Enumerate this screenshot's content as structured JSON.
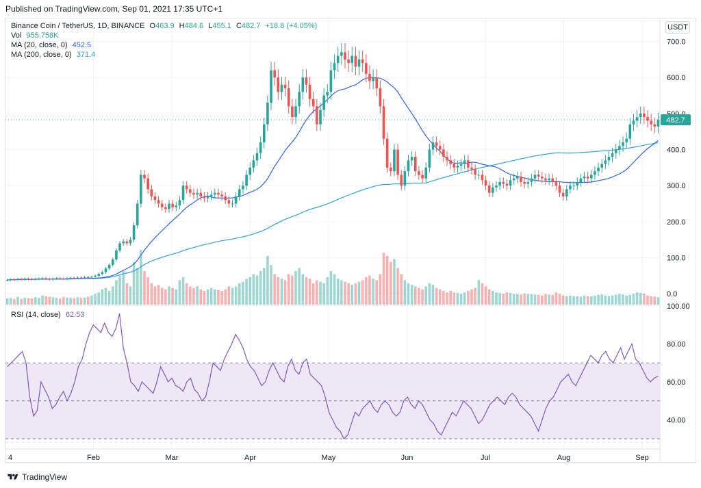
{
  "header": {
    "published": "Published on TradingView.com, Sep 01, 2021 17:35 UTC+1"
  },
  "legend": {
    "symbol": "Binance Coin / TetherUS, 1D, BINANCE",
    "ohlc": {
      "o_label": "O",
      "o": "463.9",
      "h_label": "H",
      "h": "484.6",
      "l_label": "L",
      "l": "455.1",
      "c_label": "C",
      "c": "482.7",
      "change": "+18.8 (+4.05%)"
    },
    "vol_label": "Vol",
    "vol": "955.758K",
    "ma20_label": "MA (20, close, 0)",
    "ma20": "452.5",
    "ma200_label": "MA (200, close, 0)",
    "ma200": "371.4",
    "rsi_label": "RSI (14, close)",
    "rsi": "62.53"
  },
  "currency_button": "USDT",
  "price_tag": "482.7",
  "footer": {
    "brand": "TradingView"
  },
  "colors": {
    "up": "#26a69a",
    "down": "#ef5350",
    "ma20": "#2962ff",
    "ma200": "#26a5e0",
    "rsi": "#7e57c2",
    "rsi_band": "#ede7f6",
    "grid": "#f0f3fa"
  },
  "chart_data": [
    {
      "type": "candlestick",
      "title": "",
      "price_axis": {
        "min": -30,
        "max": 720,
        "ticks": [
          "0.0",
          "100.0",
          "200.0",
          "300.0",
          "400.0",
          "500.0",
          "600.0",
          "700.0"
        ]
      },
      "time_axis": {
        "labels": [
          "4",
          "Feb",
          "Mar",
          "Apr",
          "May",
          "Jun",
          "Jul",
          "Aug",
          "Sep"
        ]
      },
      "last_price": 482.7,
      "close_series": [
        38,
        40,
        39,
        41,
        40,
        42,
        41,
        40,
        41,
        42,
        43,
        41,
        40,
        42,
        43,
        42,
        41,
        43,
        44,
        43,
        45,
        44,
        46,
        45,
        47,
        50,
        55,
        60,
        70,
        80,
        95,
        120,
        140,
        145,
        140,
        150,
        190,
        250,
        330,
        320,
        290,
        270,
        260,
        250,
        240,
        235,
        250,
        240,
        245,
        260,
        300,
        290,
        280,
        275,
        280,
        270,
        265,
        270,
        275,
        280,
        275,
        270,
        260,
        250,
        250,
        270,
        290,
        300,
        330,
        350,
        370,
        390,
        420,
        470,
        530,
        620,
        600,
        560,
        580,
        570,
        520,
        490,
        520,
        560,
        600,
        580,
        540,
        520,
        470,
        510,
        550,
        560,
        620,
        640,
        660,
        670,
        650,
        640,
        660,
        630,
        650,
        640,
        610,
        590,
        600,
        570,
        520,
        430,
        350,
        340,
        400,
        330,
        300,
        340,
        370,
        380,
        340,
        330,
        320,
        350,
        400,
        420,
        410,
        400,
        380,
        370,
        360,
        350,
        355,
        360,
        370,
        350,
        345,
        330,
        330,
        315,
        300,
        280,
        295,
        300,
        310,
        305,
        300,
        315,
        320,
        325,
        310,
        305,
        310,
        320,
        330,
        325,
        320,
        315,
        320,
        310,
        300,
        280,
        270,
        290,
        300,
        300,
        310,
        320,
        325,
        320,
        330,
        340,
        350,
        360,
        370,
        380,
        390,
        400,
        410,
        420,
        430,
        470,
        480,
        490,
        500,
        490,
        480,
        470,
        464,
        483
      ],
      "volume": {
        "max_label": "",
        "values": [
          20,
          22,
          18,
          25,
          19,
          23,
          21,
          20,
          24,
          22,
          30,
          28,
          26,
          24,
          22,
          20,
          25,
          23,
          22,
          21,
          24,
          22,
          23,
          26,
          30,
          35,
          40,
          50,
          55,
          45,
          60,
          80,
          95,
          110,
          70,
          60,
          140,
          120,
          180,
          110,
          90,
          70,
          60,
          65,
          55,
          50,
          60,
          55,
          50,
          80,
          90,
          70,
          60,
          55,
          60,
          50,
          45,
          50,
          55,
          50,
          48,
          45,
          50,
          60,
          55,
          60,
          70,
          75,
          85,
          90,
          100,
          95,
          110,
          120,
          160,
          130,
          100,
          90,
          85,
          80,
          100,
          95,
          110,
          120,
          100,
          90,
          85,
          70,
          80,
          75,
          70,
          90,
          110,
          100,
          85,
          80,
          75,
          70,
          65,
          70,
          75,
          80,
          90,
          95,
          85,
          80,
          100,
          170,
          160,
          140,
          150,
          120,
          100,
          80,
          70,
          65,
          60,
          55,
          50,
          60,
          70,
          65,
          55,
          50,
          45,
          40,
          45,
          40,
          38,
          35,
          40,
          45,
          50,
          55,
          80,
          70,
          60,
          50,
          45,
          40,
          38,
          36,
          40,
          38,
          35,
          34,
          33,
          36,
          35,
          34,
          33,
          32,
          30,
          35,
          33,
          32,
          40,
          35,
          30,
          28,
          30,
          28,
          27,
          26,
          30,
          28,
          27,
          30,
          32,
          33,
          30,
          28,
          30,
          32,
          35,
          33,
          30,
          32,
          35,
          40,
          38,
          36,
          30,
          28,
          26,
          24
        ]
      }
    },
    {
      "type": "line",
      "title": "",
      "ylim": [
        25,
        100
      ],
      "ticks": [
        "40.00",
        "60.00",
        "80.00",
        "100.00"
      ],
      "overbought": 70,
      "oversold": 30,
      "midline": 50,
      "rsi_values": [
        68,
        70,
        72,
        74,
        76,
        70,
        52,
        42,
        45,
        60,
        56,
        52,
        46,
        48,
        52,
        55,
        50,
        54,
        60,
        68,
        72,
        80,
        86,
        90,
        88,
        86,
        91,
        86,
        84,
        88,
        96,
        78,
        70,
        60,
        58,
        55,
        60,
        58,
        56,
        54,
        60,
        68,
        64,
        60,
        62,
        58,
        57,
        55,
        60,
        62,
        56,
        54,
        50,
        52,
        60,
        70,
        68,
        66,
        72,
        76,
        80,
        85,
        82,
        78,
        72,
        68,
        66,
        62,
        58,
        60,
        66,
        70,
        66,
        62,
        60,
        68,
        72,
        66,
        64,
        70,
        72,
        64,
        62,
        60,
        58,
        52,
        44,
        40,
        36,
        34,
        30,
        32,
        38,
        44,
        42,
        46,
        48,
        50,
        46,
        44,
        48,
        50,
        48,
        44,
        42,
        44,
        50,
        52,
        48,
        46,
        50,
        48,
        44,
        40,
        38,
        34,
        32,
        36,
        40,
        44,
        42,
        46,
        50,
        48,
        46,
        42,
        38,
        40,
        44,
        48,
        50,
        52,
        50,
        48,
        52,
        54,
        52,
        48,
        46,
        44,
        42,
        38,
        34,
        40,
        46,
        50,
        52,
        56,
        60,
        62,
        64,
        60,
        58,
        62,
        66,
        70,
        74,
        72,
        70,
        74,
        76,
        72,
        70,
        74,
        78,
        72,
        76,
        80,
        72,
        70,
        66,
        62,
        60,
        62,
        63
      ]
    }
  ]
}
